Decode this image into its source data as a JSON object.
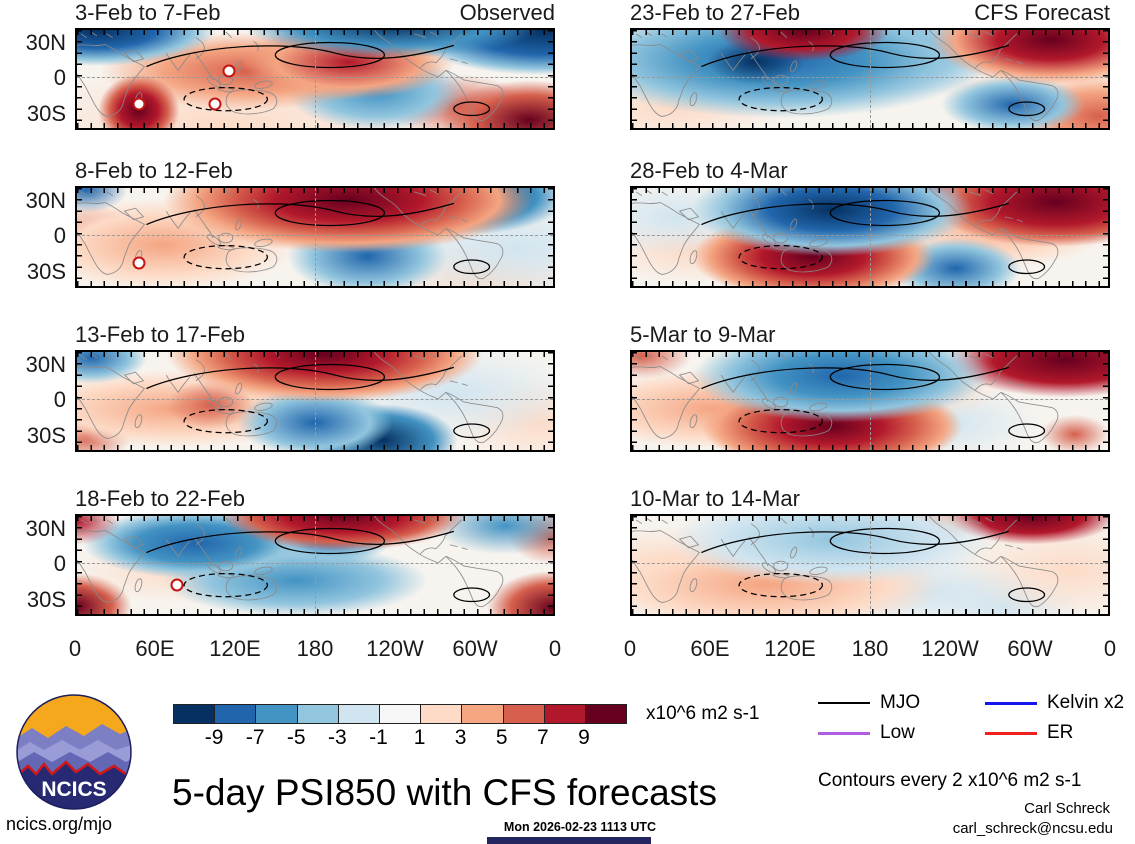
{
  "title": "5-day PSI850 with CFS forecasts",
  "branding": {
    "logo_text": "NCICS",
    "site": "ncics.org/mjo"
  },
  "footer": {
    "timestamp": "Mon 2026-02-23 1113 UTC",
    "author": "Carl Schreck",
    "email": "carl_schreck@ncsu.edu"
  },
  "notes": {
    "contour_note": "Contours every 2 x10^6 m2 s-1",
    "colorbar_units": "x10^6 m2 s-1"
  },
  "chart_data": {
    "type": "heatmap",
    "subtype": "filled-contour world map panels (0-360 lon, ~45N-45S lat)",
    "title": "5-day PSI850 with CFS forecasts",
    "variable": "PSI850 streamfunction anomalies",
    "units": "x10^6 m2 s-1",
    "panel_grid": {
      "rows": 4,
      "cols": 2,
      "column_labels": [
        "Observed",
        "CFS Forecast"
      ]
    },
    "panels": [
      {
        "title": "3-Feb to 7-Feb",
        "column": "Observed",
        "corner_label": "Observed",
        "cyclone_markers": [
          {
            "x_pct": 32,
            "y_pct": 42
          },
          {
            "x_pct": 13,
            "y_pct": 75
          },
          {
            "x_pct": 29,
            "y_pct": 76
          }
        ]
      },
      {
        "title": "8-Feb to 12-Feb",
        "column": "Observed",
        "corner_label": "",
        "cyclone_markers": [
          {
            "x_pct": 13,
            "y_pct": 77
          }
        ]
      },
      {
        "title": "13-Feb to 17-Feb",
        "column": "Observed",
        "corner_label": "",
        "cyclone_markers": []
      },
      {
        "title": "18-Feb to 22-Feb",
        "column": "Observed",
        "corner_label": "",
        "cyclone_markers": [
          {
            "x_pct": 21,
            "y_pct": 70
          }
        ]
      },
      {
        "title": "23-Feb to 27-Feb",
        "column": "CFS Forecast",
        "corner_label": "CFS Forecast",
        "cyclone_markers": []
      },
      {
        "title": "28-Feb to 4-Mar",
        "column": "CFS Forecast",
        "corner_label": "",
        "cyclone_markers": []
      },
      {
        "title": "5-Mar to 9-Mar",
        "column": "CFS Forecast",
        "corner_label": "",
        "cyclone_markers": []
      },
      {
        "title": "10-Mar to 14-Mar",
        "column": "CFS Forecast",
        "corner_label": "",
        "cyclone_markers": []
      }
    ],
    "x_axis": {
      "tick_labels": [
        "0",
        "60E",
        "120E",
        "180",
        "120W",
        "60W",
        "0"
      ],
      "lon_range_deg": [
        0,
        360
      ]
    },
    "y_axis": {
      "tick_labels": [
        "30N",
        "0",
        "30S"
      ]
    },
    "shading_levels": [
      -9,
      -7,
      -5,
      -3,
      -1,
      1,
      3,
      5,
      7,
      9
    ],
    "colorbar_colors": [
      "#053061",
      "#2166ac",
      "#4393c3",
      "#92c5de",
      "#d1e5f0",
      "#f7f7f7",
      "#fddbc7",
      "#f4a582",
      "#d6604d",
      "#b2182b",
      "#67001f"
    ],
    "legend": [
      {
        "label": "MJO",
        "color": "#000000"
      },
      {
        "label": "Low",
        "color": "#b05ce0"
      },
      {
        "label": "Kelvin x2",
        "color": "#1414ee"
      },
      {
        "label": "ER",
        "color": "#ee2020"
      }
    ],
    "legend_note": "Contours every 2 x10^6 m2 s-1",
    "reference_lines": {
      "horizontal": "equator, gray dashed",
      "vertical": "180 longitude, gray dashed"
    }
  }
}
